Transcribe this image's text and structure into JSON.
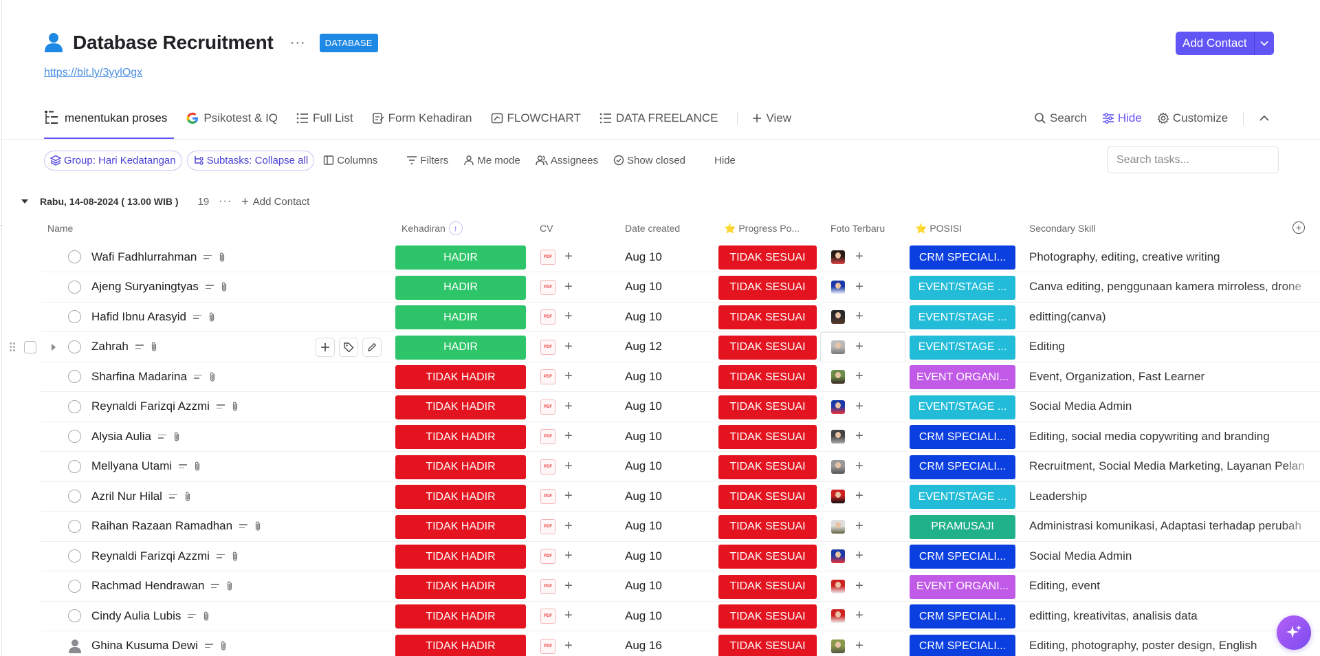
{
  "header": {
    "title": "Database Recruitment",
    "more": "···",
    "badge": "DATABASE",
    "link": "https://bit.ly/3yylOgx",
    "add_contact": "Add Contact"
  },
  "tabs": [
    {
      "label": "menentukan proses",
      "icon": "list-tree-icon",
      "active": true
    },
    {
      "label": "Psikotest & IQ",
      "icon": "google-icon"
    },
    {
      "label": "Full List",
      "icon": "list-icon"
    },
    {
      "label": "Form Kehadiran",
      "icon": "form-icon"
    },
    {
      "label": "FLOWCHART",
      "icon": "whiteboard-icon"
    },
    {
      "label": "DATA FREELANCE",
      "icon": "list-icon"
    }
  ],
  "view_label": "View",
  "right_tools": {
    "search": "Search",
    "hide": "Hide",
    "customize": "Customize"
  },
  "filters": {
    "group": "Group: Hari Kedatangan",
    "subtasks": "Subtasks: Collapse all",
    "columns": "Columns",
    "filters": "Filters",
    "me_mode": "Me mode",
    "assignees": "Assignees",
    "show_closed": "Show closed",
    "hide": "Hide",
    "search_placeholder": "Search tasks..."
  },
  "group": {
    "name": "Rabu, 14-08-2024 ( 13.00 WIB )",
    "count": "19",
    "more": "···",
    "add": "Add Contact"
  },
  "columns": {
    "name": "Name",
    "kehadiran": "Kehadiran",
    "cv": "CV",
    "date_created": "Date created",
    "progress": "⭐ Progress Po...",
    "foto": "Foto Terbaru",
    "posisi": "⭐ POSISI",
    "secondary_skill": "Secondary Skill"
  },
  "pdf_label": "PDF",
  "colors": {
    "accent": "#6155f5",
    "hadir": "#2ec56a",
    "tidak_hadir": "#e3141f",
    "crm": "#0c3fe0",
    "event_stage": "#22bcd8",
    "event_organi": "#c25ae8",
    "pramusaji": "#20b08a"
  },
  "rows": [
    {
      "name": "Wafi Fadhlurrahman",
      "kehadiran": "HADIR",
      "date": "Aug 10",
      "progress": "TIDAK SESUAI",
      "posisi": "CRM SPECIALI...",
      "posisi_color": "#0c3fe0",
      "skill": "Photography, editing, creative writing"
    },
    {
      "name": "Ajeng Suryaningtyas",
      "kehadiran": "HADIR",
      "date": "Aug 10",
      "progress": "TIDAK SESUAI",
      "posisi": "EVENT/STAGE ...",
      "posisi_color": "#22bcd8",
      "skill": "Canva editing, penggunaan kamera mirroless, drone"
    },
    {
      "name": "Hafid Ibnu Arasyid",
      "kehadiran": "HADIR",
      "date": "Aug 10",
      "progress": "TIDAK SESUAI",
      "posisi": "EVENT/STAGE ...",
      "posisi_color": "#22bcd8",
      "skill": "editting(canva)"
    },
    {
      "name": "Zahrah",
      "kehadiran": "HADIR",
      "date": "Aug 12",
      "progress": "TIDAK SESUAI",
      "posisi": "EVENT/STAGE ...",
      "posisi_color": "#22bcd8",
      "skill": "Editing"
    },
    {
      "name": "Sharfina Madarina",
      "kehadiran": "TIDAK HADIR",
      "date": "Aug 10",
      "progress": "TIDAK SESUAI",
      "posisi": "EVENT ORGANI...",
      "posisi_color": "#c25ae8",
      "skill": "Event, Organization, Fast Learner"
    },
    {
      "name": "Reynaldi Farizqi Azzmi",
      "kehadiran": "TIDAK HADIR",
      "date": "Aug 10",
      "progress": "TIDAK SESUAI",
      "posisi": "EVENT/STAGE ...",
      "posisi_color": "#22bcd8",
      "skill": "Social Media Admin"
    },
    {
      "name": "Alysia Aulia",
      "kehadiran": "TIDAK HADIR",
      "date": "Aug 10",
      "progress": "TIDAK SESUAI",
      "posisi": "CRM SPECIALI...",
      "posisi_color": "#0c3fe0",
      "skill": "Editing, social media copywriting and branding"
    },
    {
      "name": "Mellyana Utami",
      "kehadiran": "TIDAK HADIR",
      "date": "Aug 10",
      "progress": "TIDAK SESUAI",
      "posisi": "CRM SPECIALI...",
      "posisi_color": "#0c3fe0",
      "skill": "Recruitment, Social Media Marketing, Layanan Pelan"
    },
    {
      "name": "Azril Nur Hilal",
      "kehadiran": "TIDAK HADIR",
      "date": "Aug 10",
      "progress": "TIDAK SESUAI",
      "posisi": "EVENT/STAGE ...",
      "posisi_color": "#22bcd8",
      "skill": "Leadership"
    },
    {
      "name": "Raihan Razaan Ramadhan",
      "kehadiran": "TIDAK HADIR",
      "date": "Aug 10",
      "progress": "TIDAK SESUAI",
      "posisi": "PRAMUSAJI",
      "posisi_color": "#20b08a",
      "skill": "Administrasi komunikasi, Adaptasi terhadap perubah"
    },
    {
      "name": "Reynaldi Farizqi Azzmi",
      "kehadiran": "TIDAK HADIR",
      "date": "Aug 10",
      "progress": "TIDAK SESUAI",
      "posisi": "CRM SPECIALI...",
      "posisi_color": "#0c3fe0",
      "skill": "Social Media Admin"
    },
    {
      "name": "Rachmad Hendrawan",
      "kehadiran": "TIDAK HADIR",
      "date": "Aug 10",
      "progress": "TIDAK SESUAI",
      "posisi": "EVENT ORGANI...",
      "posisi_color": "#c25ae8",
      "skill": "Editing, event"
    },
    {
      "name": "Cindy Aulia Lubis",
      "kehadiran": "TIDAK HADIR",
      "date": "Aug 10",
      "progress": "TIDAK SESUAI",
      "posisi": "CRM SPECIALI...",
      "posisi_color": "#0c3fe0",
      "skill": "editting, kreativitas, analisis data"
    },
    {
      "name": "Ghina Kusuma Dewi",
      "kehadiran": "TIDAK HADIR",
      "date": "Aug 16",
      "progress": "TIDAK SESUAI",
      "posisi": "CRM SPECIALI...",
      "posisi_color": "#0c3fe0",
      "skill": "Editing, photography, poster design, English"
    }
  ]
}
